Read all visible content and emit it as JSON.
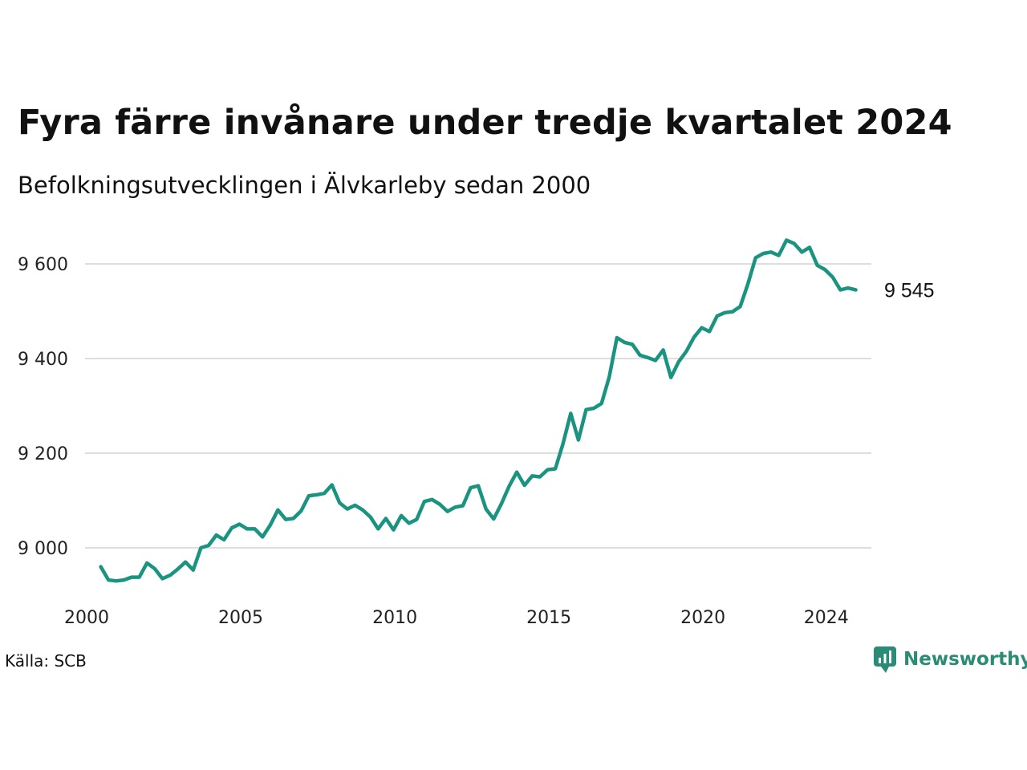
{
  "title": "Fyra färre invånare under tredje kvartalet 2024",
  "subtitle": "Befolkningsutvecklingen i Älvkarleby sedan 2000",
  "source": "Källa: SCB",
  "brand": {
    "name": "Newsworthy",
    "icon": "newsworthy-logo-icon",
    "color": "#2a8c77"
  },
  "chart_data": {
    "type": "line",
    "title": "Fyra färre invånare under tredje kvartalet 2024",
    "subtitle": "Befolkningsutvecklingen i Älvkarleby sedan 2000",
    "xlabel": "",
    "ylabel": "",
    "xlim": [
      2000,
      2024.75
    ],
    "ylim": [
      8950,
      9670
    ],
    "yticks": [
      9000,
      9200,
      9400,
      9600
    ],
    "ytick_labels": [
      "9 000",
      "9 200",
      "9 400",
      "9 600"
    ],
    "xticks": [
      2000,
      2005,
      2010,
      2015,
      2020,
      2024
    ],
    "xtick_labels": [
      "2000",
      "2005",
      "2010",
      "2015",
      "2020",
      "2024"
    ],
    "grid": true,
    "line_color": "#1a9480",
    "end_label": "9 545",
    "series": [
      {
        "x": [
          2000.25,
          2000.5,
          2000.75,
          2001,
          2001.25,
          2001.5,
          2001.75,
          2002,
          2002.25,
          2002.5,
          2002.75,
          2003,
          2003.25,
          2003.5,
          2003.75,
          2004,
          2004.25,
          2004.5,
          2004.75,
          2005,
          2005.25,
          2005.5,
          2005.75,
          2006,
          2006.25,
          2006.5,
          2006.75,
          2007,
          2007.25,
          2007.5,
          2007.75,
          2008,
          2008.25,
          2008.5,
          2008.75,
          2009,
          2009.25,
          2009.5,
          2009.75,
          2010,
          2010.25,
          2010.5,
          2010.75,
          2011,
          2011.25,
          2011.5,
          2011.75,
          2012,
          2012.25,
          2012.5,
          2012.75,
          2013,
          2013.25,
          2013.5,
          2013.75,
          2014,
          2014.25,
          2014.5,
          2014.75,
          2015,
          2015.25,
          2015.5,
          2015.75,
          2016,
          2016.25,
          2016.5,
          2016.75,
          2017,
          2017.25,
          2017.5,
          2017.75,
          2018,
          2018.25,
          2018.5,
          2018.75,
          2019,
          2019.25,
          2019.5,
          2019.75,
          2020,
          2020.25,
          2020.5,
          2020.75,
          2021,
          2021.25,
          2021.5,
          2021.75,
          2022,
          2022.25,
          2022.5,
          2022.75,
          2023,
          2023.25,
          2023.5,
          2023.75,
          2024,
          2024.25,
          2024.5,
          2024.75
        ],
        "values": [
          8960,
          8932,
          8930,
          8932,
          8938,
          8938,
          8968,
          8956,
          8935,
          8942,
          8955,
          8970,
          8953,
          9000,
          9005,
          9027,
          9017,
          9042,
          9050,
          9040,
          9040,
          9023,
          9048,
          9080,
          9060,
          9062,
          9078,
          9110,
          9112,
          9115,
          9133,
          9095,
          9082,
          9090,
          9080,
          9065,
          9040,
          9062,
          9038,
          9068,
          9052,
          9060,
          9098,
          9102,
          9092,
          9077,
          9086,
          9089,
          9127,
          9131,
          9082,
          9061,
          9093,
          9130,
          9160,
          9132,
          9152,
          9150,
          9165,
          9167,
          9220,
          9284,
          9228,
          9292,
          9295,
          9305,
          9361,
          9444,
          9434,
          9430,
          9407,
          9402,
          9396,
          9418,
          9360,
          9393,
          9415,
          9445,
          9465,
          9457,
          9490,
          9497,
          9499,
          9510,
          9558,
          9613,
          9622,
          9625,
          9618,
          9650,
          9643,
          9625,
          9635,
          9597,
          9588,
          9572,
          9545,
          9549,
          9545
        ]
      }
    ]
  }
}
